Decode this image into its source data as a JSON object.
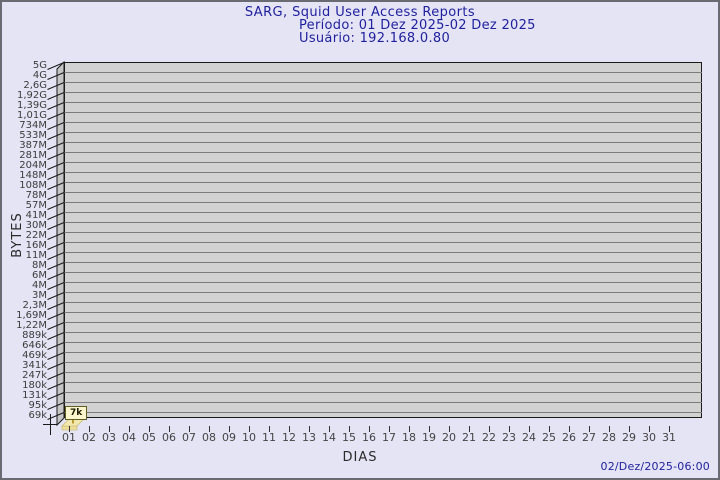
{
  "header": {
    "title": "SARG, Squid User Access Reports",
    "period": "Período: 01 Dez 2025-02 Dez 2025",
    "user": "Usuário: 192.168.0.80"
  },
  "footer": {
    "timestamp": "02/Dez/2025-06:00"
  },
  "chart_data": {
    "type": "bar",
    "title": "SARG, Squid User Access Reports",
    "subtitle_period": "Período: 01 Dez 2025-02 Dez 2025",
    "subtitle_user": "Usuário: 192.168.0.80",
    "xlabel": "DIAS",
    "ylabel": "BYTES",
    "y_scale": "logarithmic",
    "grid": "horizontal",
    "legend_position": "none",
    "y_axis_ticks": [
      "5G",
      "4G",
      "2,6G",
      "1,92G",
      "1,39G",
      "1,01G",
      "734M",
      "533M",
      "387M",
      "281M",
      "204M",
      "148M",
      "108M",
      "78M",
      "57M",
      "41M",
      "30M",
      "22M",
      "16M",
      "11M",
      "8M",
      "6M",
      "4M",
      "3M",
      "2,3M",
      "1,69M",
      "1,22M",
      "889k",
      "646k",
      "469k",
      "341k",
      "247k",
      "180k",
      "131k",
      "95k",
      "69k"
    ],
    "x_categories": [
      "01",
      "02",
      "03",
      "04",
      "05",
      "06",
      "07",
      "08",
      "09",
      "10",
      "11",
      "12",
      "13",
      "14",
      "15",
      "16",
      "17",
      "18",
      "19",
      "20",
      "21",
      "22",
      "23",
      "24",
      "25",
      "26",
      "27",
      "28",
      "29",
      "30",
      "31"
    ],
    "bars": [
      {
        "category": "01",
        "value_label": "7k",
        "value_bytes": 7000
      }
    ]
  },
  "colors": {
    "background": "#e4e4f5",
    "frame_border": "#6a6a72",
    "title_text": "#1f1f9e",
    "panel_bg": "#d2d2d2",
    "wall_bg": "#c5c5c5",
    "gridline": "#7c7c7c",
    "bar_fill": "#f2e8ae",
    "tooltip_bg": "#fbf5cd",
    "timestamp_text": "#1f1f9e"
  }
}
